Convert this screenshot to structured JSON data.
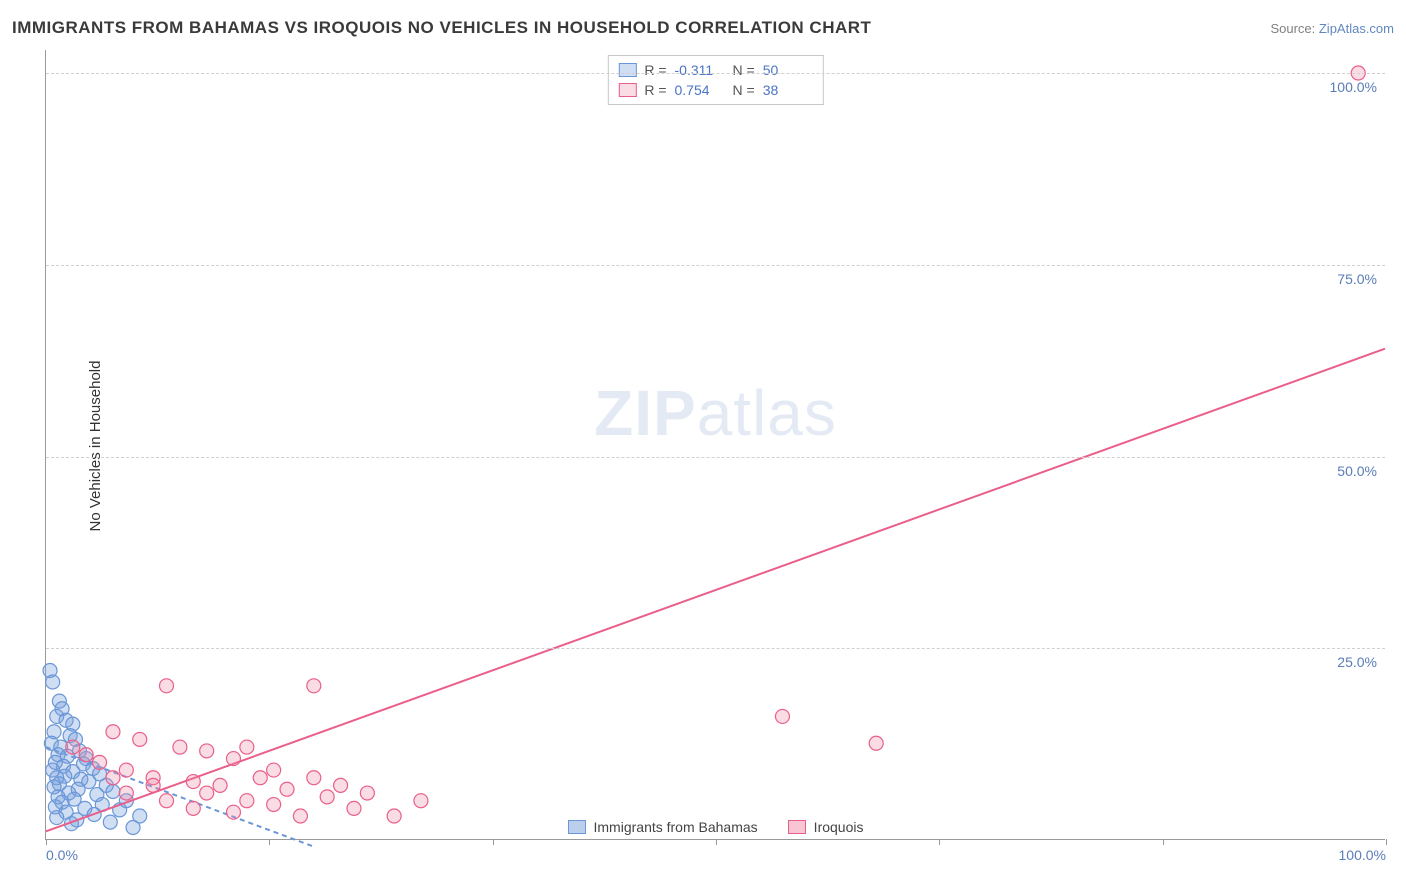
{
  "title": "IMMIGRANTS FROM BAHAMAS VS IROQUOIS NO VEHICLES IN HOUSEHOLD CORRELATION CHART",
  "source_label": "Source: ",
  "source_name": "ZipAtlas.com",
  "ylabel": "No Vehicles in Household",
  "watermark_bold": "ZIP",
  "watermark_rest": "atlas",
  "chart": {
    "type": "scatter",
    "xlim": [
      0,
      100
    ],
    "ylim": [
      0,
      103
    ],
    "xtick_positions": [
      0,
      16.67,
      33.33,
      50,
      66.67,
      83.33,
      100
    ],
    "xtick_labels": {
      "0": "0.0%",
      "100": "100.0%"
    },
    "ytick_positions": [
      25,
      50,
      75,
      100
    ],
    "ytick_labels": [
      "25.0%",
      "50.0%",
      "75.0%",
      "100.0%"
    ],
    "grid_color": "#d0d0d0",
    "axis_color": "#999999",
    "background_color": "#ffffff",
    "tick_label_color": "#5a7db8",
    "series": [
      {
        "name": "Immigrants from Bahamas",
        "marker_fill": "rgba(120,160,220,0.35)",
        "marker_stroke": "#6a97d8",
        "line_color": "#6a97d8",
        "line_dash": "5,4",
        "r_value": "-0.311",
        "n_value": "50",
        "trend": {
          "x1": 0,
          "y1": 12,
          "x2": 20,
          "y2": -1
        },
        "points": [
          [
            0.3,
            22
          ],
          [
            0.5,
            20.5
          ],
          [
            1,
            18
          ],
          [
            1.2,
            17
          ],
          [
            0.8,
            16
          ],
          [
            1.5,
            15.5
          ],
          [
            2,
            15
          ],
          [
            0.6,
            14
          ],
          [
            1.8,
            13.5
          ],
          [
            2.2,
            13
          ],
          [
            0.4,
            12.5
          ],
          [
            1.1,
            12
          ],
          [
            2.5,
            11.5
          ],
          [
            0.9,
            11
          ],
          [
            1.6,
            10.8
          ],
          [
            3,
            10.5
          ],
          [
            0.7,
            10
          ],
          [
            2.8,
            9.8
          ],
          [
            1.3,
            9.5
          ],
          [
            3.5,
            9.2
          ],
          [
            0.5,
            9
          ],
          [
            2,
            8.8
          ],
          [
            4,
            8.5
          ],
          [
            1.4,
            8.2
          ],
          [
            0.8,
            8
          ],
          [
            2.6,
            7.8
          ],
          [
            3.2,
            7.5
          ],
          [
            1,
            7.2
          ],
          [
            4.5,
            7
          ],
          [
            0.6,
            6.8
          ],
          [
            2.4,
            6.5
          ],
          [
            5,
            6.2
          ],
          [
            1.7,
            6
          ],
          [
            3.8,
            5.8
          ],
          [
            0.9,
            5.5
          ],
          [
            2.1,
            5.2
          ],
          [
            6,
            5
          ],
          [
            1.2,
            4.8
          ],
          [
            4.2,
            4.5
          ],
          [
            0.7,
            4.2
          ],
          [
            2.9,
            4
          ],
          [
            5.5,
            3.8
          ],
          [
            1.5,
            3.5
          ],
          [
            3.6,
            3.2
          ],
          [
            7,
            3
          ],
          [
            0.8,
            2.8
          ],
          [
            2.3,
            2.5
          ],
          [
            4.8,
            2.2
          ],
          [
            1.9,
            2
          ],
          [
            6.5,
            1.5
          ]
        ]
      },
      {
        "name": "Iroquois",
        "marker_fill": "rgba(240,140,170,0.3)",
        "marker_stroke": "#ea5f8a",
        "line_color": "#ea5f8a",
        "line_dash": "none",
        "r_value": "0.754",
        "n_value": "38",
        "trend": {
          "x1": 0,
          "y1": 1,
          "x2": 100,
          "y2": 64
        },
        "points": [
          [
            98,
            100
          ],
          [
            55,
            16
          ],
          [
            62,
            12.5
          ],
          [
            20,
            20
          ],
          [
            9,
            20
          ],
          [
            5,
            14
          ],
          [
            7,
            13
          ],
          [
            10,
            12
          ],
          [
            12,
            11.5
          ],
          [
            14,
            10.5
          ],
          [
            15,
            12
          ],
          [
            17,
            9
          ],
          [
            8,
            8
          ],
          [
            11,
            7.5
          ],
          [
            13,
            7
          ],
          [
            16,
            8
          ],
          [
            18,
            6.5
          ],
          [
            20,
            8
          ],
          [
            22,
            7
          ],
          [
            24,
            6
          ],
          [
            26,
            3
          ],
          [
            28,
            5
          ],
          [
            6,
            6
          ],
          [
            9,
            5
          ],
          [
            11,
            4
          ],
          [
            14,
            3.5
          ],
          [
            17,
            4.5
          ],
          [
            19,
            3
          ],
          [
            21,
            5.5
          ],
          [
            23,
            4
          ],
          [
            4,
            10
          ],
          [
            6,
            9
          ],
          [
            3,
            11
          ],
          [
            2,
            12
          ],
          [
            5,
            8
          ],
          [
            8,
            7
          ],
          [
            12,
            6
          ],
          [
            15,
            5
          ]
        ]
      }
    ]
  },
  "legend_bottom": [
    {
      "label": "Immigrants from Bahamas",
      "fill": "rgba(120,160,220,0.5)",
      "stroke": "#6a97d8"
    },
    {
      "label": "Iroquois",
      "fill": "rgba(240,140,170,0.5)",
      "stroke": "#ea5f8a"
    }
  ]
}
